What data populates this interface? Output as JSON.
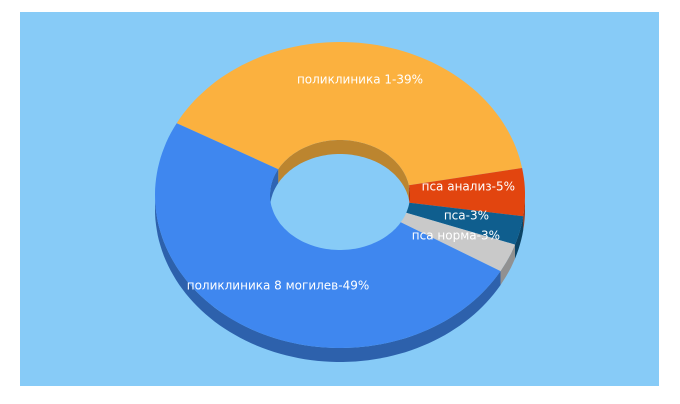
{
  "chart_data": {
    "type": "donut3d",
    "categories": [
      "поликлиника 1",
      "пса анализ",
      "пса",
      "пса норма",
      "поликлиника 8 могилев"
    ],
    "values": [
      39,
      5,
      3,
      3,
      49
    ],
    "value_labels": [
      "поликлиника 1-39%",
      "пса анализ-5%",
      "пса-3%",
      "пса норма-3%",
      "поликлиника 8 могилев-49%"
    ],
    "colors": [
      "#fbb13f",
      "#e2450f",
      "#0f5e8e",
      "#c9c9c9",
      "#3f87ef"
    ]
  }
}
